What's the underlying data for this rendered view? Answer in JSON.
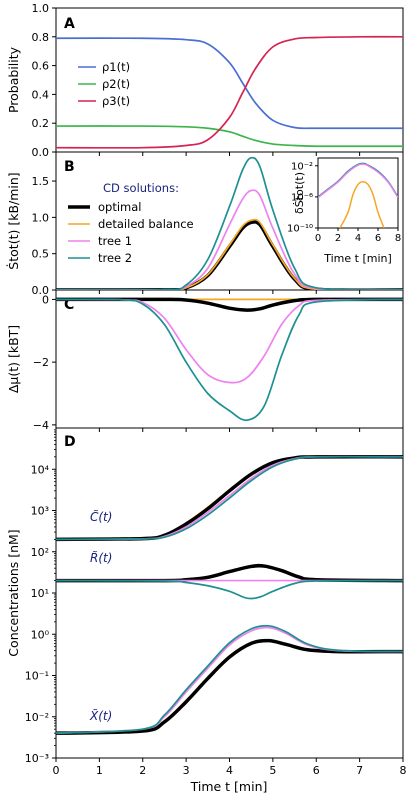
{
  "colors": {
    "rho1": "#4b6fd1",
    "rho2": "#3bb54a",
    "rho3": "#d62451",
    "optimal": "#000000",
    "detailed_balance": "#f5a623",
    "tree1": "#ee82ee",
    "tree2": "#1f9090",
    "label_blue": "#1a237e"
  },
  "shared_x": {
    "label": "Time t [min]",
    "range": [
      0,
      8
    ],
    "ticks": [
      "0",
      "1",
      "2",
      "3",
      "4",
      "5",
      "6",
      "7",
      "8"
    ]
  },
  "chart_data": [
    {
      "panel": "A",
      "type": "line",
      "ylabel": "Probability",
      "ylim": [
        0,
        1.0
      ],
      "yticks": [
        "0.0",
        "0.2",
        "0.4",
        "0.6",
        "0.8",
        "1.0"
      ],
      "legend": {
        "placement": "left",
        "entries": [
          "ρ1(t)",
          "ρ2(t)",
          "ρ3(t)"
        ]
      },
      "series": [
        {
          "name": "ρ1(t)",
          "x": [
            0,
            2,
            3,
            3.5,
            4,
            4.3,
            4.6,
            5,
            5.5,
            6,
            7,
            8
          ],
          "y": [
            0.79,
            0.79,
            0.78,
            0.75,
            0.62,
            0.48,
            0.34,
            0.22,
            0.17,
            0.165,
            0.165,
            0.165
          ]
        },
        {
          "name": "ρ2(t)",
          "x": [
            0,
            2,
            3,
            3.5,
            4,
            4.3,
            4.6,
            5,
            5.5,
            6,
            7,
            8
          ],
          "y": [
            0.18,
            0.18,
            0.175,
            0.165,
            0.14,
            0.11,
            0.08,
            0.055,
            0.045,
            0.04,
            0.04,
            0.04
          ]
        },
        {
          "name": "ρ3(t)",
          "x": [
            0,
            2,
            3,
            3.5,
            4,
            4.3,
            4.6,
            5,
            5.5,
            6,
            7,
            8
          ],
          "y": [
            0.03,
            0.03,
            0.045,
            0.085,
            0.24,
            0.41,
            0.58,
            0.73,
            0.785,
            0.795,
            0.8,
            0.8
          ]
        }
      ]
    },
    {
      "panel": "B",
      "type": "line",
      "ylabel": "Ṡtot(t) [kB/min]",
      "ylim": [
        0,
        1.9
      ],
      "yticks": [
        "0.0",
        "0.5",
        "1.0",
        "1.5"
      ],
      "legend": {
        "title": "CD solutions:",
        "placement": "left",
        "entries": [
          "optimal",
          "detailed balance",
          "tree 1",
          "tree 2"
        ]
      },
      "series": [
        {
          "name": "optimal",
          "x": [
            0,
            2.5,
            3,
            3.5,
            4,
            4.3,
            4.5,
            4.7,
            5,
            5.5,
            6,
            8
          ],
          "y": [
            0,
            0.002,
            0.03,
            0.2,
            0.6,
            0.85,
            0.93,
            0.9,
            0.6,
            0.15,
            0.01,
            0
          ]
        },
        {
          "name": "detailed balance",
          "x": [
            0,
            2.5,
            3,
            3.5,
            4,
            4.3,
            4.5,
            4.7,
            5,
            5.5,
            6,
            8
          ],
          "y": [
            0,
            0.002,
            0.03,
            0.21,
            0.62,
            0.88,
            0.96,
            0.93,
            0.62,
            0.16,
            0.01,
            0
          ]
        },
        {
          "name": "tree 1",
          "x": [
            0,
            2.5,
            3,
            3.5,
            4,
            4.3,
            4.5,
            4.7,
            5,
            5.5,
            6,
            8
          ],
          "y": [
            0,
            0.003,
            0.05,
            0.3,
            0.9,
            1.25,
            1.37,
            1.3,
            0.85,
            0.22,
            0.02,
            0
          ]
        },
        {
          "name": "tree 2",
          "x": [
            0,
            2.5,
            3,
            3.5,
            4,
            4.3,
            4.5,
            4.7,
            5,
            5.5,
            6,
            8
          ],
          "y": [
            0,
            0.004,
            0.07,
            0.42,
            1.15,
            1.65,
            1.82,
            1.7,
            1.1,
            0.3,
            0.03,
            0
          ]
        }
      ],
      "inset": {
        "ylabel": "δṠtot(t)",
        "xlabel": "Time t [min]",
        "yscale": "log",
        "ylim": [
          1e-10,
          0.1
        ],
        "yticks": [
          "10⁻²",
          "10⁻⁶",
          "10⁻¹⁰"
        ],
        "xticks": [
          "0",
          "2",
          "4",
          "6",
          "8"
        ],
        "series": [
          {
            "name": "tree 2",
            "x": [
              0,
              1,
              2,
              3,
              4,
              4.6,
              5,
              6,
              7,
              8
            ],
            "y": [
              1e-06,
              1e-05,
              0.0001,
              0.002,
              0.015,
              0.02,
              0.012,
              0.002,
              0.0001,
              1e-06
            ]
          },
          {
            "name": "tree 1",
            "x": [
              0,
              1,
              2,
              3,
              4,
              4.6,
              5,
              6,
              7,
              8
            ],
            "y": [
              8e-07,
              8e-06,
              8e-05,
              0.0015,
              0.012,
              0.016,
              0.01,
              0.0015,
              8e-05,
              8e-07
            ]
          },
          {
            "name": "detailed balance",
            "x": [
              2.2,
              3,
              3.5,
              4,
              4.5,
              5,
              5.5,
              6,
              6.6
            ],
            "y": [
              1e-10,
              1e-08,
              2e-06,
              4e-05,
              9e-05,
              4e-05,
              2e-06,
              1e-08,
              1e-10
            ]
          }
        ]
      }
    },
    {
      "panel": "C",
      "type": "line",
      "ylabel": "Δμ(t) [kBT]",
      "ylim": [
        -4.1,
        0.3
      ],
      "yticks": [
        "0",
        "−2",
        "−4"
      ],
      "series": [
        {
          "name": "detailed balance",
          "x": [
            0,
            8
          ],
          "y": [
            0,
            0
          ]
        },
        {
          "name": "optimal",
          "x": [
            0,
            2.5,
            3,
            3.5,
            4,
            4.4,
            4.7,
            5,
            5.5,
            6,
            8
          ],
          "y": [
            0,
            0,
            -0.02,
            -0.12,
            -0.28,
            -0.34,
            -0.3,
            -0.18,
            -0.04,
            0,
            0
          ]
        },
        {
          "name": "tree 1",
          "x": [
            0,
            1.5,
            2,
            2.5,
            3,
            3.5,
            4,
            4.4,
            4.8,
            5.2,
            5.6,
            6,
            8
          ],
          "y": [
            0,
            -0.01,
            -0.1,
            -0.6,
            -1.6,
            -2.4,
            -2.65,
            -2.5,
            -1.8,
            -0.8,
            -0.2,
            -0.03,
            0
          ]
        },
        {
          "name": "tree 2",
          "x": [
            0,
            1.5,
            2,
            2.5,
            3,
            3.5,
            4,
            4.4,
            4.8,
            5.2,
            5.6,
            6,
            8
          ],
          "y": [
            0,
            -0.01,
            -0.15,
            -0.8,
            -2.0,
            -3.0,
            -3.55,
            -3.85,
            -3.4,
            -1.8,
            -0.5,
            -0.08,
            0
          ]
        }
      ]
    },
    {
      "panel": "D",
      "type": "line",
      "ylabel": "Concentrations [nM]",
      "yscale": "log",
      "ylim": [
        0.001,
        100000.0
      ],
      "yticks": [
        "10⁻³",
        "10⁻²",
        "10⁻¹",
        "10⁰",
        "10¹",
        "10²",
        "10³",
        "10⁴"
      ],
      "curve_labels": [
        "C̃(t)",
        "R̃(t)",
        "X̃(t)"
      ],
      "series": [
        {
          "name": "C̃(t) detailed balance",
          "x": [
            0,
            2,
            2.5,
            3,
            3.5,
            4,
            4.5,
            5,
            5.5,
            6,
            8
          ],
          "y": [
            200,
            210,
            260,
            500,
            1200,
            3200,
            8000,
            15000,
            19000,
            20000,
            20000
          ]
        },
        {
          "name": "C̃(t) optimal",
          "x": [
            0,
            2,
            2.5,
            3,
            3.5,
            4,
            4.5,
            5,
            5.5,
            6,
            8
          ],
          "y": [
            200,
            208,
            250,
            470,
            1100,
            3000,
            7600,
            14500,
            18800,
            20000,
            20000
          ]
        },
        {
          "name": "C̃(t) tree 1",
          "x": [
            0,
            2,
            2.5,
            3,
            3.5,
            4,
            4.5,
            5,
            5.5,
            6,
            8
          ],
          "y": [
            200,
            205,
            235,
            400,
            900,
            2300,
            6000,
            12500,
            18000,
            20000,
            20000
          ]
        },
        {
          "name": "C̃(t) tree 2",
          "x": [
            0,
            2,
            2.5,
            3,
            3.5,
            4,
            4.5,
            5,
            5.5,
            6,
            8
          ],
          "y": [
            200,
            205,
            225,
            360,
            780,
            2000,
            5300,
            11500,
            17500,
            20000,
            20000
          ]
        },
        {
          "name": "R̃(t) detailed balance",
          "x": [
            0,
            2.5,
            3,
            3.5,
            4,
            4.5,
            4.8,
            5.2,
            5.6,
            6,
            8
          ],
          "y": [
            20,
            20,
            21,
            25,
            34,
            45,
            46,
            36,
            25,
            21,
            20
          ]
        },
        {
          "name": "R̃(t) optimal",
          "x": [
            0,
            2.5,
            3,
            3.5,
            4,
            4.5,
            4.8,
            5.2,
            5.6,
            6,
            8
          ],
          "y": [
            20,
            20,
            21,
            24,
            33,
            44,
            45,
            35,
            24.5,
            21,
            20
          ]
        },
        {
          "name": "R̃(t) tree 1",
          "x": [
            0,
            8
          ],
          "y": [
            20,
            20
          ]
        },
        {
          "name": "R̃(t) tree 2",
          "x": [
            0,
            2.5,
            3,
            3.5,
            4,
            4.4,
            4.7,
            5,
            5.5,
            6,
            8
          ],
          "y": [
            20,
            19.5,
            18,
            15,
            11,
            7.5,
            8,
            11,
            17,
            19.5,
            20
          ]
        },
        {
          "name": "X̃(t) detailed balance",
          "x": [
            0,
            2,
            2.5,
            3,
            3.5,
            4,
            4.5,
            4.9,
            5.3,
            5.8,
            6.5,
            8
          ],
          "y": [
            0.004,
            0.0045,
            0.008,
            0.025,
            0.09,
            0.3,
            0.62,
            0.72,
            0.58,
            0.42,
            0.38,
            0.38
          ]
        },
        {
          "name": "X̃(t) optimal",
          "x": [
            0,
            2,
            2.5,
            3,
            3.5,
            4,
            4.5,
            4.9,
            5.3,
            5.8,
            6.5,
            8
          ],
          "y": [
            0.004,
            0.0045,
            0.0075,
            0.023,
            0.085,
            0.28,
            0.6,
            0.7,
            0.57,
            0.42,
            0.38,
            0.38
          ]
        },
        {
          "name": "X̃(t) tree 1",
          "x": [
            0,
            2,
            2.5,
            3,
            3.5,
            4,
            4.5,
            4.9,
            5.3,
            5.8,
            6.5,
            8
          ],
          "y": [
            0.004,
            0.005,
            0.01,
            0.04,
            0.15,
            0.55,
            1.2,
            1.45,
            1.05,
            0.55,
            0.4,
            0.38
          ]
        },
        {
          "name": "X̃(t) tree 2",
          "x": [
            0,
            2,
            2.5,
            3,
            3.5,
            4,
            4.5,
            4.9,
            5.3,
            5.8,
            6.5,
            8
          ],
          "y": [
            0.004,
            0.005,
            0.011,
            0.045,
            0.17,
            0.62,
            1.35,
            1.6,
            1.15,
            0.58,
            0.41,
            0.38
          ]
        }
      ]
    }
  ]
}
